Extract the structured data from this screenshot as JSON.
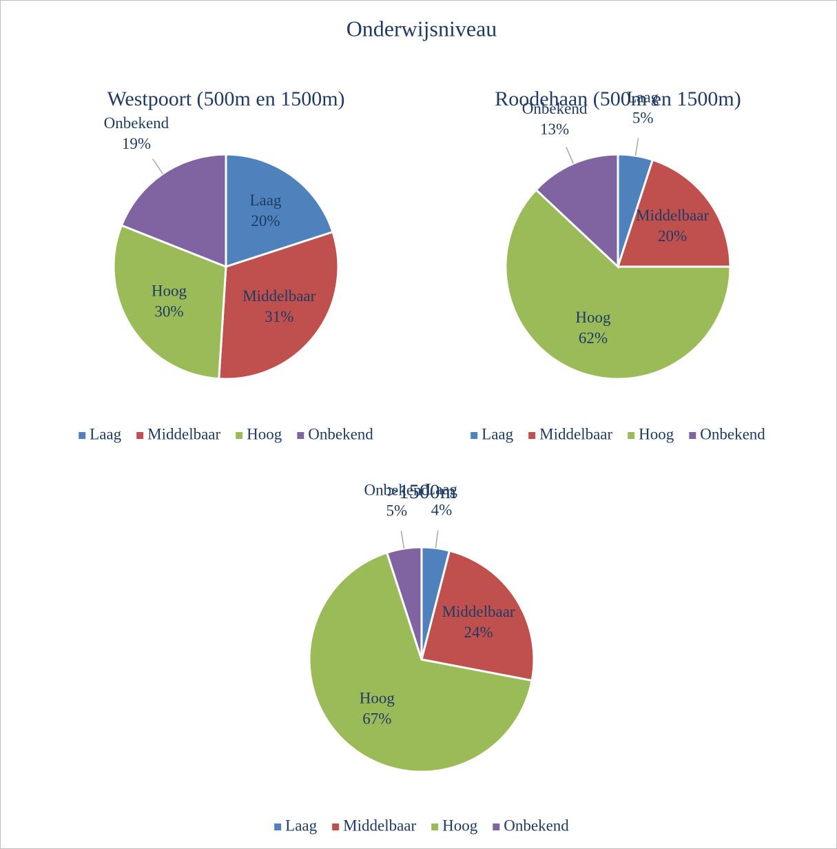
{
  "title": "Onderwijsniveau",
  "chart_data": [
    {
      "type": "pie",
      "title": "Westpoort (500m en 1500m)",
      "categories": [
        "Laag",
        "Middelbaar",
        "Hoog",
        "Onbekend"
      ],
      "values": [
        20,
        31,
        30,
        19
      ],
      "value_labels": [
        "20%",
        "31%",
        "30%",
        "19%"
      ],
      "colors": [
        "#4f81bd",
        "#c0504d",
        "#9bbb59",
        "#8064a2"
      ]
    },
    {
      "type": "pie",
      "title": "Roodehaan (500m en 1500m)",
      "categories": [
        "Laag",
        "Middelbaar",
        "Hoog",
        "Onbekend"
      ],
      "values": [
        5,
        20,
        62,
        13
      ],
      "value_labels": [
        "5%",
        "20%",
        "62%",
        "13%"
      ],
      "colors": [
        "#4f81bd",
        "#c0504d",
        "#9bbb59",
        "#8064a2"
      ]
    },
    {
      "type": "pie",
      "title": ">1500m",
      "categories": [
        "Laag",
        "Middelbaar",
        "Hoog",
        "Onbekend"
      ],
      "values": [
        4,
        24,
        67,
        5
      ],
      "value_labels": [
        "4%",
        "24%",
        "67%",
        "5%"
      ],
      "colors": [
        "#4f81bd",
        "#c0504d",
        "#9bbb59",
        "#8064a2"
      ]
    }
  ]
}
